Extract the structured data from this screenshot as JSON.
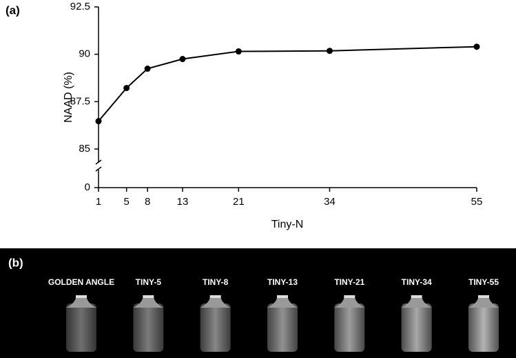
{
  "chart_data": {
    "type": "line",
    "panel_label": "(a)",
    "x_label": "Tiny-N",
    "y_label": "NAAD (%)",
    "x": [
      1,
      5,
      8,
      13,
      21,
      34,
      55
    ],
    "series": [
      {
        "color": "#000000",
        "values": [
          86.47,
          88.22,
          89.24,
          89.75,
          90.15,
          90.18,
          90.4
        ]
      }
    ],
    "xlim": [
      1,
      55
    ],
    "xticks": [
      1,
      5,
      8,
      13,
      21,
      34,
      55
    ],
    "ylim": [
      84,
      92.5
    ],
    "yticks": [
      0,
      85,
      87.5,
      90,
      92.5
    ],
    "axis_break": true,
    "grid": false
  },
  "image_panel": {
    "label": "(b)",
    "captions": [
      "GOLDEN ANGLE",
      "TINY-5",
      "TINY-8",
      "TINY-13",
      "TINY-21",
      "TINY-34",
      "TINY-55"
    ]
  }
}
